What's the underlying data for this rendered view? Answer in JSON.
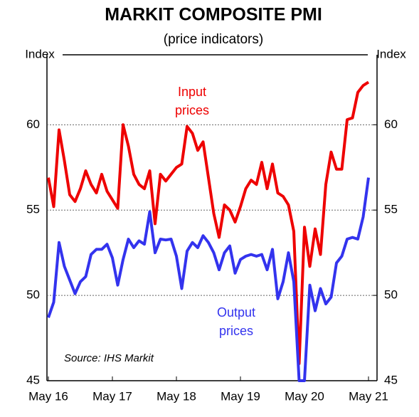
{
  "chart_data": {
    "type": "line",
    "title": "MARKIT COMPOSITE PMI",
    "subtitle": "(price indicators)",
    "ylabel": "Index",
    "y2label": "Index",
    "categories": [
      "May 16",
      null,
      null,
      null,
      null,
      null,
      null,
      null,
      null,
      null,
      null,
      null,
      "May 17",
      null,
      null,
      null,
      null,
      null,
      null,
      null,
      null,
      null,
      null,
      null,
      "May 18",
      null,
      null,
      null,
      null,
      null,
      null,
      null,
      null,
      null,
      null,
      null,
      "May 19",
      null,
      null,
      null,
      null,
      null,
      null,
      null,
      null,
      null,
      null,
      null,
      "May 20",
      null,
      null,
      null,
      null,
      null,
      null,
      null,
      null,
      null,
      null,
      null,
      "May 21"
    ],
    "series": [
      {
        "name": "Input prices",
        "color": "#ee0000",
        "values": [
          56.9,
          55.2,
          59.7,
          57.9,
          55.9,
          55.5,
          56.25,
          57.3,
          56.5,
          56.0,
          57.1,
          56.1,
          55.6,
          55.1,
          60.0,
          58.75,
          57.1,
          56.5,
          56.25,
          57.3,
          54.2,
          57.1,
          56.7,
          57.1,
          57.5,
          57.7,
          59.9,
          59.5,
          58.5,
          59.0,
          56.9,
          54.8,
          53.4,
          55.3,
          55.0,
          54.3,
          55.2,
          56.25,
          56.75,
          56.5,
          57.8,
          56.25,
          57.7,
          56.0,
          55.8,
          55.3,
          53.75,
          46.0,
          54.0,
          51.7,
          53.9,
          52.4,
          56.5,
          58.4,
          57.4,
          57.4,
          60.3,
          60.4,
          61.9,
          62.3,
          62.5
        ]
      },
      {
        "name": "Output prices",
        "color": "#3333ee",
        "values": [
          48.7,
          49.6,
          53.1,
          51.7,
          50.9,
          50.1,
          50.8,
          51.1,
          52.4,
          52.7,
          52.7,
          53.0,
          52.2,
          50.6,
          52.1,
          53.3,
          52.8,
          53.2,
          53.0,
          54.9,
          52.5,
          53.3,
          53.25,
          53.3,
          52.3,
          50.4,
          52.6,
          53.1,
          52.8,
          53.5,
          53.1,
          52.5,
          51.5,
          52.5,
          52.9,
          51.3,
          52.1,
          52.3,
          52.4,
          52.3,
          52.4,
          51.5,
          52.7,
          49.8,
          50.8,
          52.5,
          50.8,
          45.0,
          45.0,
          50.6,
          49.1,
          50.4,
          49.5,
          49.9,
          51.9,
          52.3,
          53.3,
          53.4,
          53.3,
          54.6,
          56.9
        ]
      }
    ],
    "annotations": [
      {
        "lines": [
          "Input",
          "prices"
        ],
        "color": "#ee0000"
      },
      {
        "lines": [
          "Output",
          "prices"
        ],
        "color": "#3333ee"
      },
      {
        "text": "Source: IHS Markit"
      }
    ],
    "ylim": [
      45,
      64.1
    ],
    "yticks": [
      45,
      50,
      55,
      60
    ],
    "y2lim": [
      45,
      64.1
    ],
    "y2ticks": [
      45,
      50,
      55,
      60
    ],
    "grid": true
  }
}
